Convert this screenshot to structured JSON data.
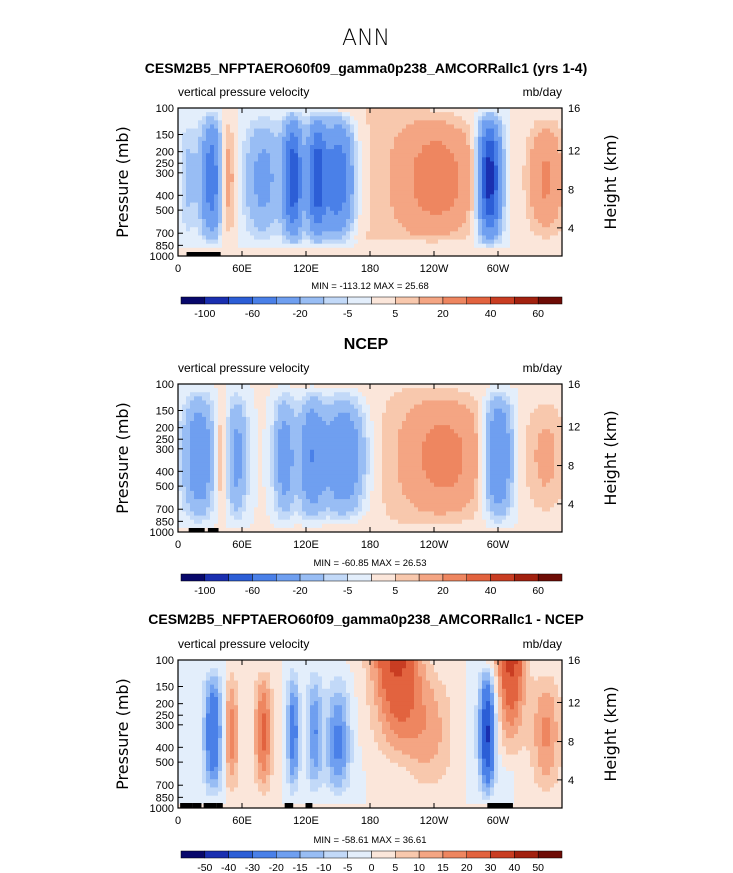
{
  "figure_title": "ANN",
  "chart_data": [
    {
      "type": "heatmap",
      "title": "CESM2B5_NFPTAERO60f09_gamma0p238_AMCORRallc1 (yrs 1-4)",
      "left_label": "vertical pressure velocity",
      "right_label": "mb/day",
      "ylabel": "Pressure (mb)",
      "y2label": "Height (km)",
      "x_ticks": [
        "0",
        "60E",
        "120E",
        "180",
        "120W",
        "60W"
      ],
      "y_ticks": [
        "100",
        "150",
        "200",
        "250",
        "300",
        "400",
        "500",
        "700",
        "850",
        "1000"
      ],
      "y2_ticks": [
        "16",
        "12",
        "8",
        "4"
      ],
      "stats": "MIN = -113.12   MAX =   25.68",
      "colorbar_labels": [
        "-100",
        "-60",
        "-20",
        "-5",
        "5",
        "20",
        "40",
        "60"
      ],
      "min": -113.12,
      "max": 25.68
    },
    {
      "type": "heatmap",
      "title": "NCEP",
      "left_label": "vertical pressure velocity",
      "right_label": "mb/day",
      "ylabel": "Pressure (mb)",
      "y2label": "Height (km)",
      "x_ticks": [
        "0",
        "60E",
        "120E",
        "180",
        "120W",
        "60W"
      ],
      "y_ticks": [
        "100",
        "150",
        "200",
        "250",
        "300",
        "400",
        "500",
        "700",
        "850",
        "1000"
      ],
      "y2_ticks": [
        "16",
        "12",
        "8",
        "4"
      ],
      "stats": "MIN = -60.85   MAX =   26.53",
      "colorbar_labels": [
        "-100",
        "-60",
        "-20",
        "-5",
        "5",
        "20",
        "40",
        "60"
      ],
      "min": -60.85,
      "max": 26.53
    },
    {
      "type": "heatmap",
      "title": "CESM2B5_NFPTAERO60f09_gamma0p238_AMCORRallc1 - NCEP",
      "left_label": "vertical pressure velocity",
      "right_label": "mb/day",
      "ylabel": "Pressure (mb)",
      "y2label": "Height (km)",
      "x_ticks": [
        "0",
        "60E",
        "120E",
        "180",
        "120W",
        "60W"
      ],
      "y_ticks": [
        "100",
        "150",
        "200",
        "250",
        "300",
        "400",
        "500",
        "700",
        "850",
        "1000"
      ],
      "y2_ticks": [
        "16",
        "12",
        "8",
        "4"
      ],
      "stats": "MIN = -58.61   MAX =   36.61",
      "colorbar_labels": [
        "-50",
        "-40",
        "-30",
        "-20",
        "-15",
        "-10",
        "-5",
        "0",
        "5",
        "10",
        "15",
        "20",
        "30",
        "40",
        "50"
      ],
      "min": -58.61,
      "max": 36.61
    }
  ],
  "colors": {
    "palette": [
      "#08086b",
      "#1a2fb0",
      "#2c5ed6",
      "#4a80e8",
      "#6f9ff0",
      "#98bdf4",
      "#c2d9f8",
      "#e3eefb",
      "#fbe6da",
      "#f8c8ad",
      "#f4a583",
      "#ee8660",
      "#e2633f",
      "#c93d22",
      "#a2210f",
      "#6e0c06"
    ]
  }
}
